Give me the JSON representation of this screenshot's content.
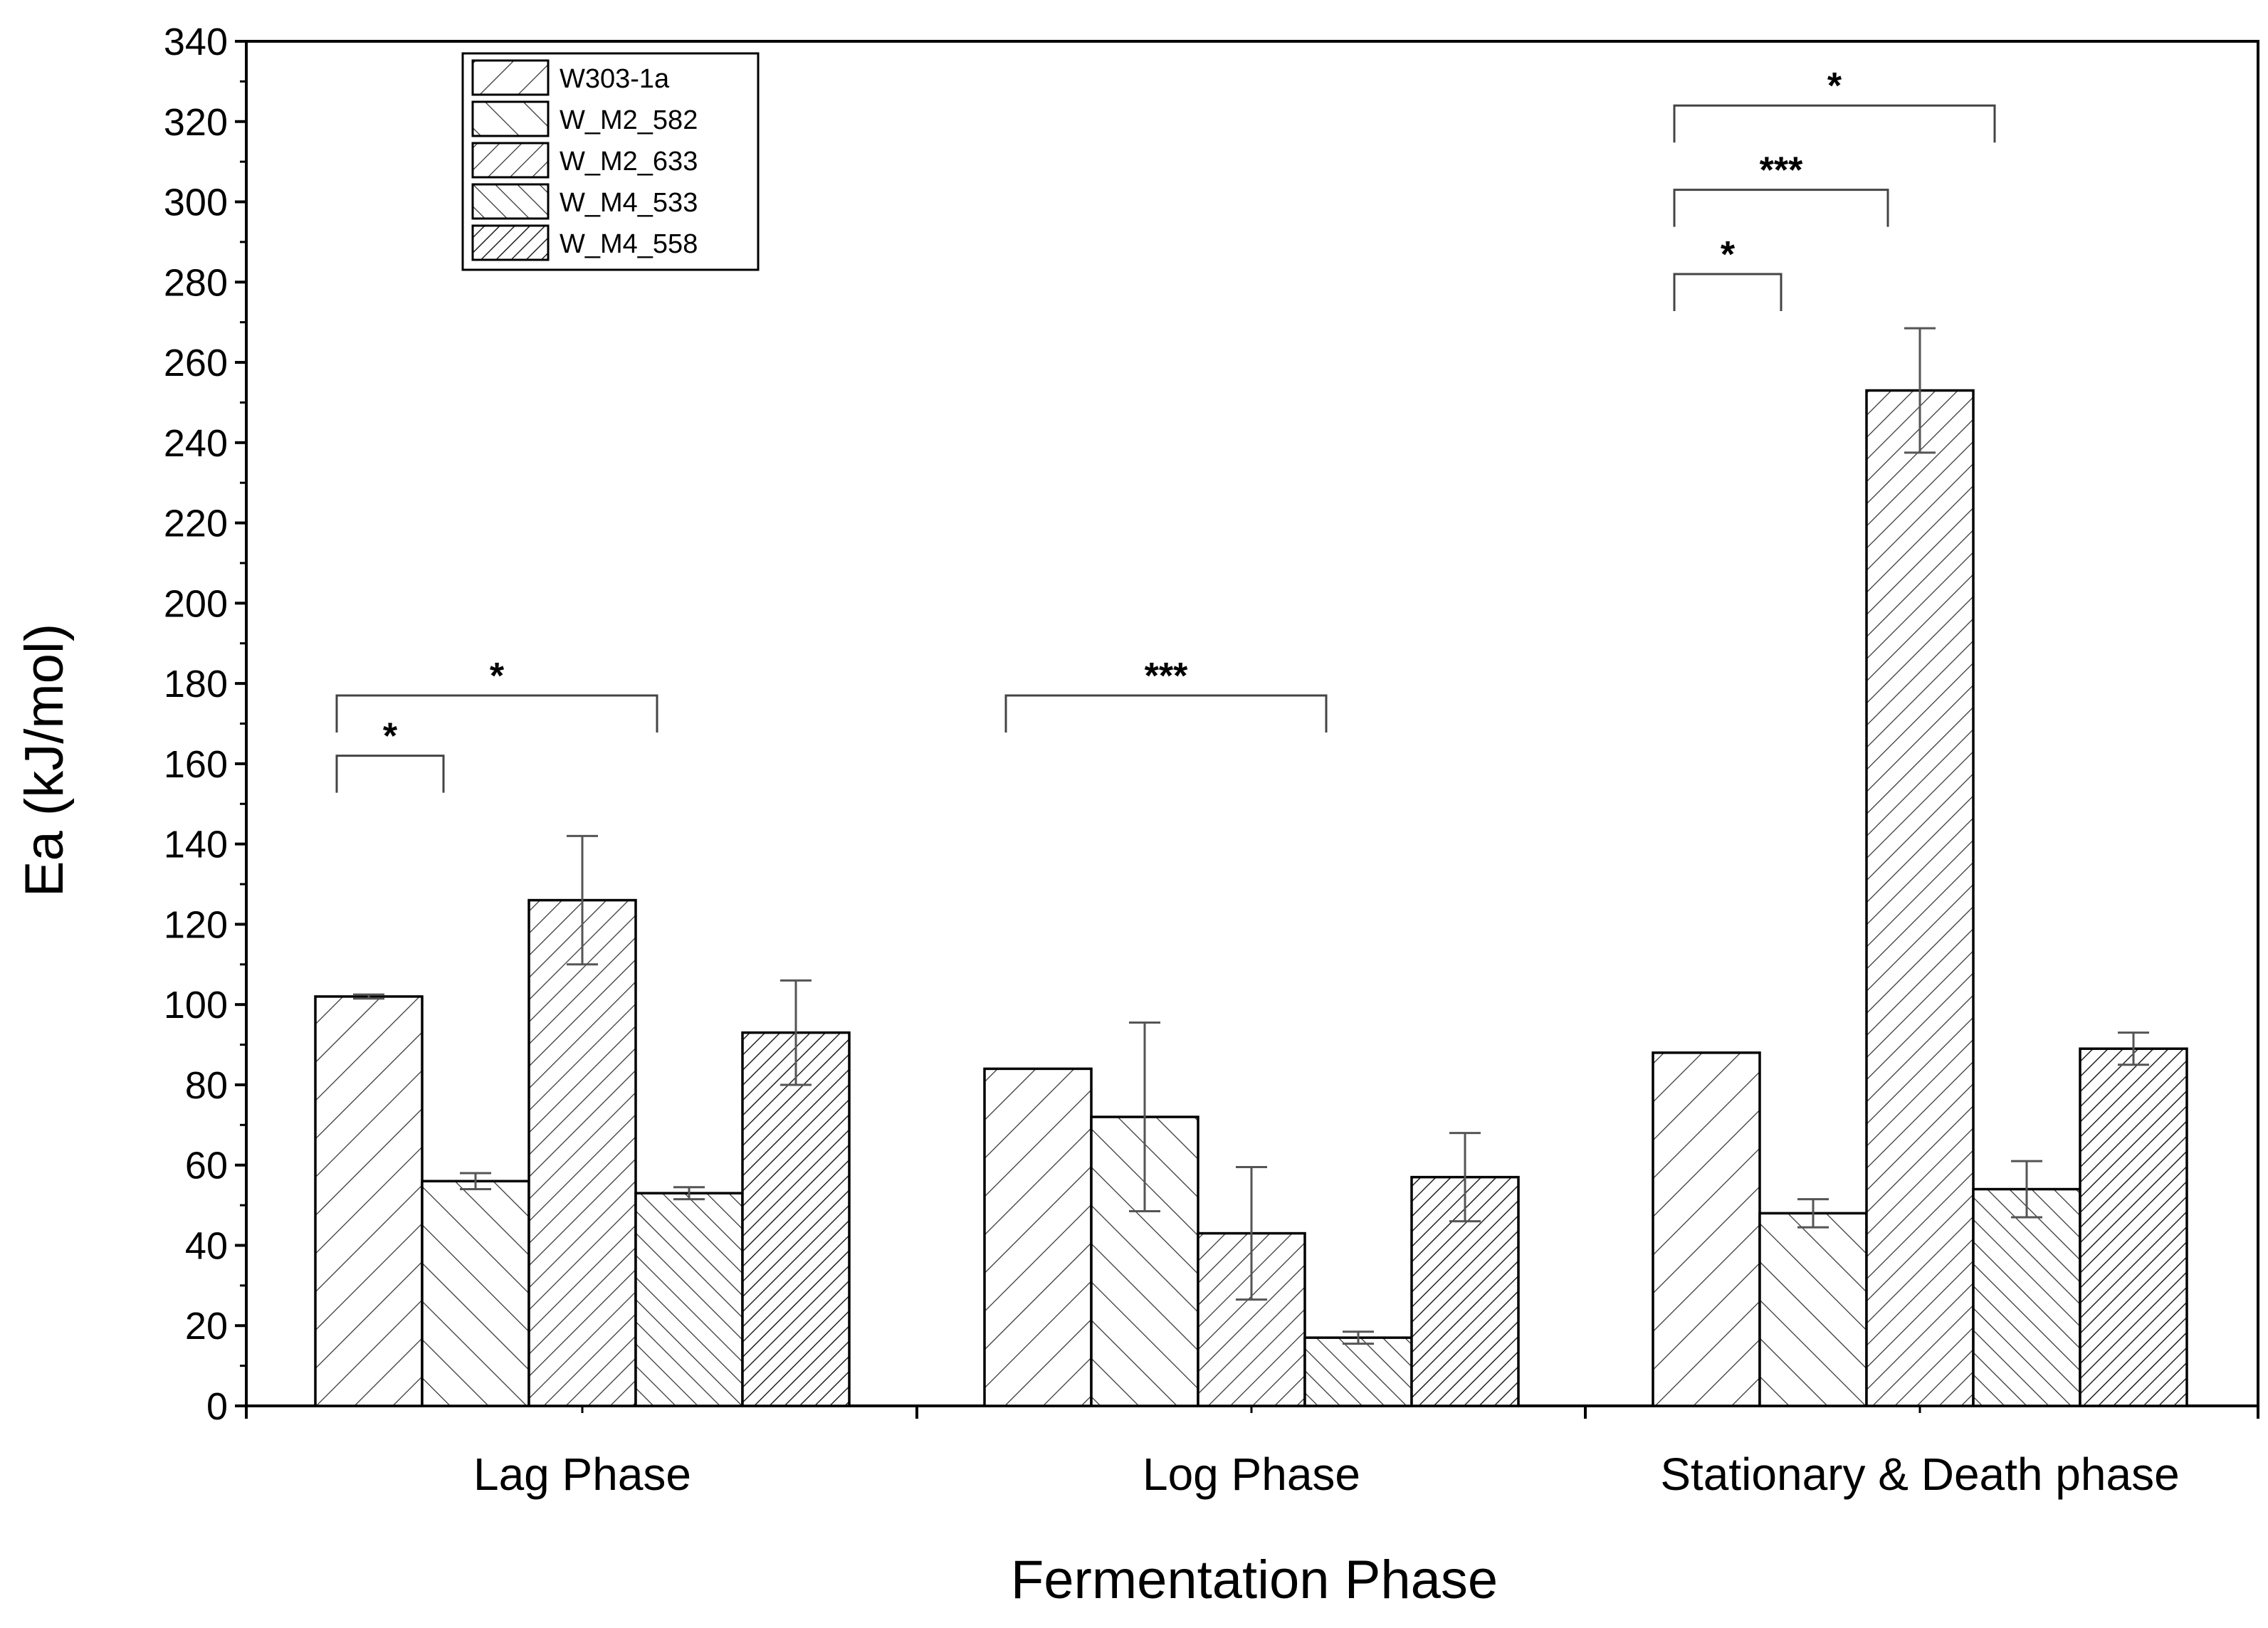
{
  "chart_data": {
    "type": "bar",
    "xlabel": "Fermentation Phase",
    "ylabel": "Ea (kJ/mol)",
    "ylim": [
      0,
      340
    ],
    "yticks": [
      0,
      20,
      40,
      60,
      80,
      100,
      120,
      140,
      160,
      180,
      200,
      220,
      240,
      260,
      280,
      300,
      320,
      340
    ],
    "categories": [
      "Lag Phase",
      "Log Phase",
      "Stationary & Death phase"
    ],
    "legend_position": "top-left",
    "series": [
      {
        "name": "W303-1a",
        "pattern": "hatch-forward-wide",
        "values": [
          102,
          84,
          88
        ],
        "errors": [
          0.5,
          0,
          0
        ]
      },
      {
        "name": "W_M2_582",
        "pattern": "hatch-backward-wide",
        "values": [
          56,
          72,
          48
        ],
        "errors": [
          2,
          23.5,
          3.5
        ]
      },
      {
        "name": "W_M2_633",
        "pattern": "hatch-forward-dense",
        "values": [
          126,
          43,
          253
        ],
        "errors": [
          16,
          16.5,
          15.5
        ]
      },
      {
        "name": "W_M4_533",
        "pattern": "hatch-backward-dense",
        "values": [
          53,
          17,
          54
        ],
        "errors": [
          1.5,
          1.5,
          7
        ]
      },
      {
        "name": "W_M4_558",
        "pattern": "hatch-forward-xdense",
        "values": [
          93,
          57,
          89
        ],
        "errors": [
          13,
          11,
          4
        ]
      }
    ],
    "significance": [
      {
        "category_index": 0,
        "from_series": 0,
        "to_series": 1,
        "label": "*",
        "y": 162
      },
      {
        "category_index": 0,
        "from_series": 0,
        "to_series": 3,
        "label": "*",
        "y": 177
      },
      {
        "category_index": 1,
        "from_series": 0,
        "to_series": 3,
        "label": "***",
        "y": 177
      },
      {
        "category_index": 2,
        "from_series": 0,
        "to_series": 1,
        "label": "*",
        "y": 282
      },
      {
        "category_index": 2,
        "from_series": 0,
        "to_series": 2,
        "label": "***",
        "y": 303
      },
      {
        "category_index": 2,
        "from_series": 0,
        "to_series": 3,
        "label": "*",
        "y": 324
      }
    ]
  }
}
